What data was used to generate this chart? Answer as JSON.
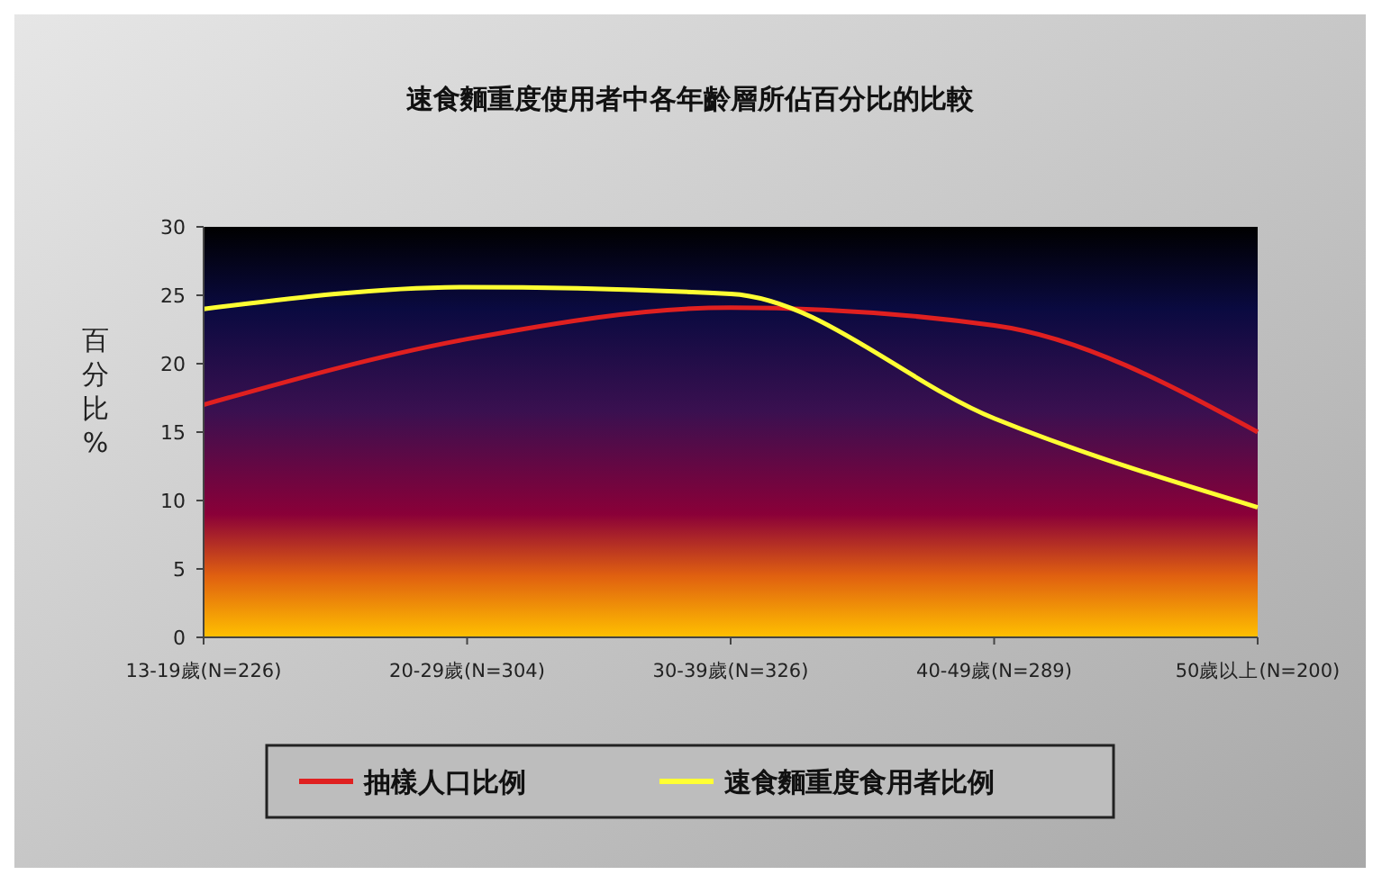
{
  "chart_data": {
    "type": "line",
    "title": "速食麵重度使用者中各年齡層所佔百分比的比較",
    "ylabel": "百分比%",
    "categories": [
      "13-19歲(N=226)",
      "20-29歲(N=304)",
      "30-39歲(N=326)",
      "40-49歲(N=289)",
      "50歲以上(N=200)"
    ],
    "series": [
      {
        "name": "抽樣人口比例",
        "color": "#e02020",
        "values": [
          17,
          21.8,
          24.1,
          22.8,
          15
        ]
      },
      {
        "name": "速食麵重度食用者比例",
        "color": "#ffff33",
        "values": [
          24,
          25.6,
          25.1,
          16,
          9.5
        ]
      }
    ],
    "ylim": [
      0,
      30
    ],
    "yticks": [
      0,
      5,
      10,
      15,
      20,
      25,
      30
    ],
    "legend": "bottom",
    "grid": false
  }
}
